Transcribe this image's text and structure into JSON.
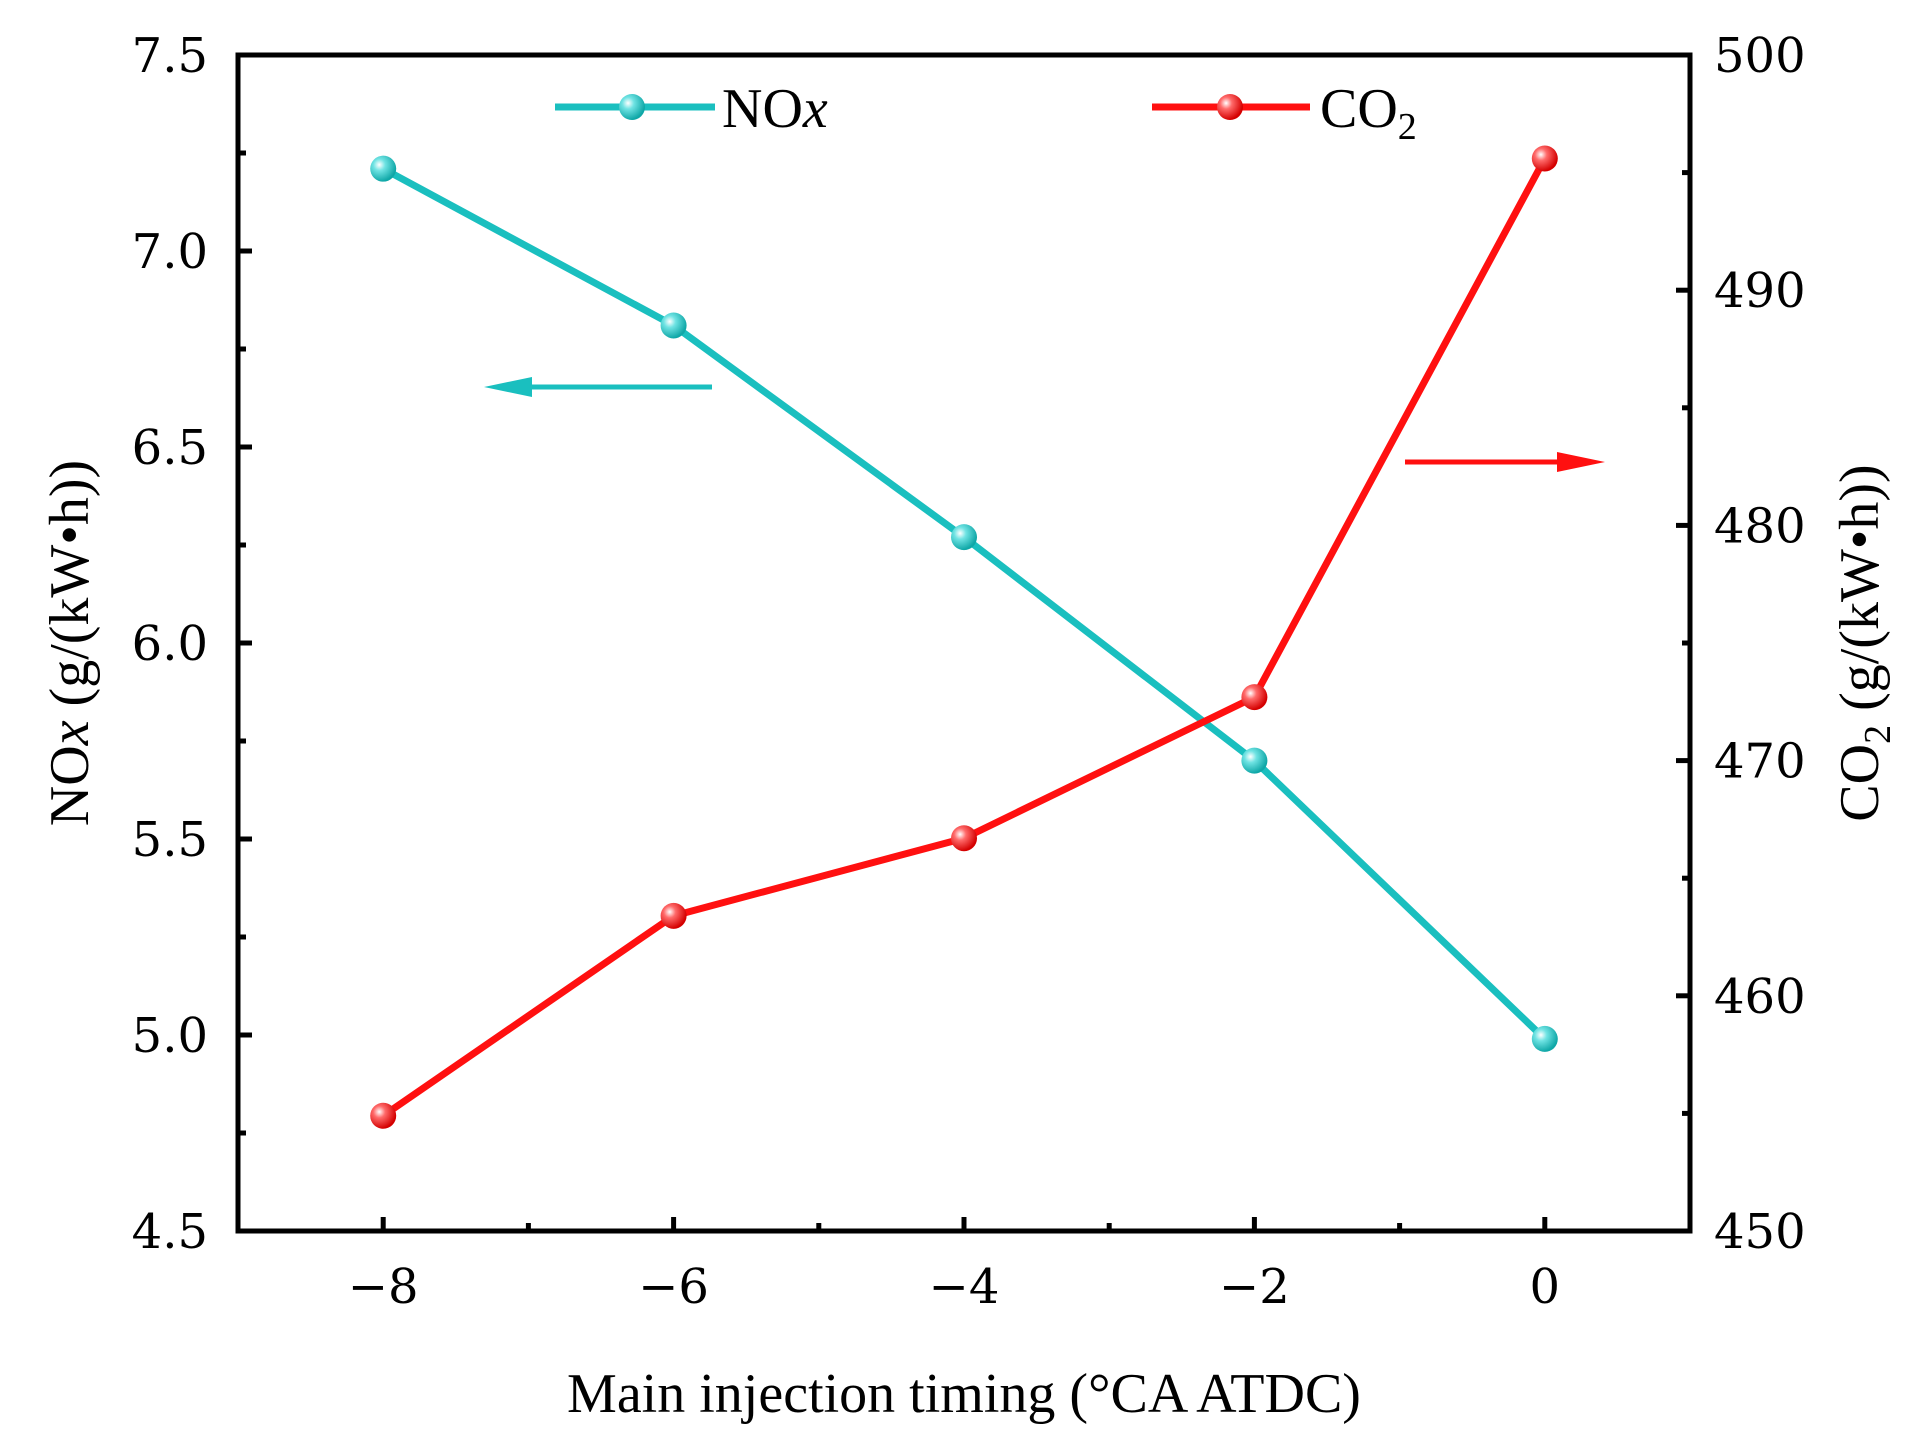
{
  "chart_data": {
    "type": "line",
    "x": [
      -8,
      -6,
      -4,
      -2,
      0
    ],
    "xlabel": "Main injection timing (°CA ATDC)",
    "xlim": [
      -9,
      1
    ],
    "xticks": [
      -8,
      -6,
      -4,
      -2,
      0
    ],
    "xtick_labels": [
      "−8",
      "−6",
      "−4",
      "−2",
      "0"
    ],
    "left_axis": {
      "label_main": "NO",
      "label_italic": "x",
      "label_unit": " (g/(kW•h))",
      "ylim": [
        4.5,
        7.5
      ],
      "ticks": [
        4.5,
        5.0,
        5.5,
        6.0,
        6.5,
        7.0,
        7.5
      ],
      "tick_labels": [
        "4.5",
        "5.0",
        "5.5",
        "6.0",
        "6.5",
        "7.0",
        "7.5"
      ]
    },
    "right_axis": {
      "label_main": "CO",
      "label_sub": "2",
      "label_unit": " (g/(kW•h))",
      "ylim": [
        450,
        500
      ],
      "ticks": [
        450,
        460,
        470,
        480,
        490,
        500
      ],
      "tick_labels": [
        "450",
        "460",
        "470",
        "480",
        "490",
        "500"
      ]
    },
    "series": [
      {
        "name": "NOx",
        "legend_main": "NO",
        "legend_italic": "x",
        "axis": "left",
        "color": "#1ABFBF",
        "values": [
          7.21,
          6.81,
          6.27,
          5.7,
          4.99
        ]
      },
      {
        "name": "CO2",
        "legend_main": "CO",
        "legend_sub": "2",
        "axis": "right",
        "color": "#FF1010",
        "values": [
          454.9,
          463.4,
          466.7,
          472.7,
          495.6
        ]
      }
    ],
    "annotations": [
      {
        "type": "arrow",
        "direction": "left",
        "color": "#1ABFBF",
        "meaning": "NOx on left axis"
      },
      {
        "type": "arrow",
        "direction": "right",
        "color": "#FF1010",
        "meaning": "CO2 on right axis"
      }
    ],
    "legend_position": "top",
    "grid": false
  }
}
